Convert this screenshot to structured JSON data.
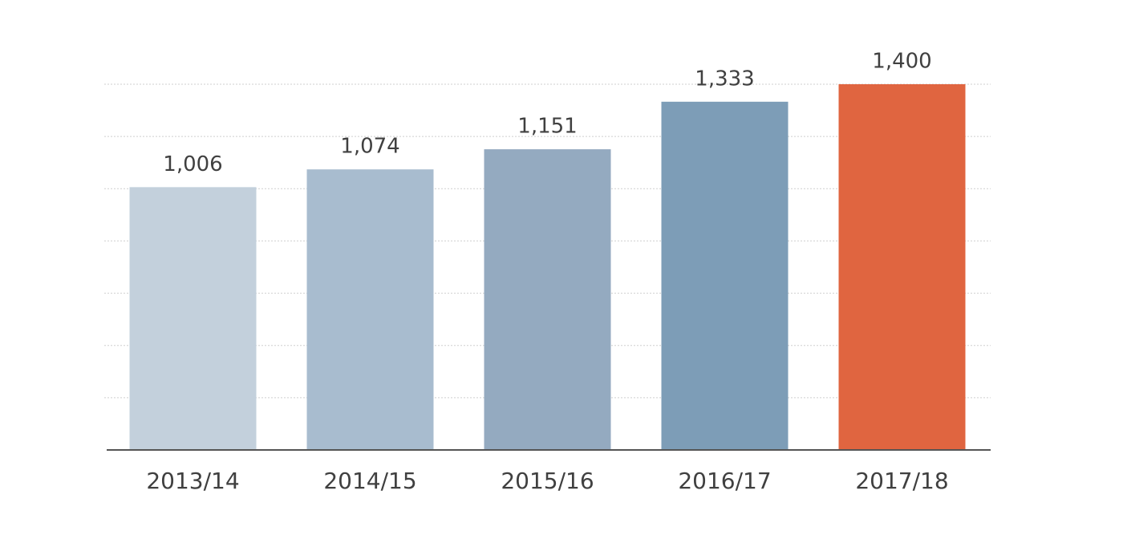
{
  "chart_data": {
    "type": "bar",
    "categories": [
      "2013/14",
      "2014/15",
      "2015/16",
      "2016/17",
      "2017/18"
    ],
    "values": [
      1006,
      1074,
      1151,
      1333,
      1400
    ],
    "value_labels": [
      "1,006",
      "1,074",
      "1,151",
      "1,333",
      "1,400"
    ],
    "colors": [
      "#c3d0dc",
      "#a8bccf",
      "#94aac0",
      "#7d9db7",
      "#e06540"
    ],
    "ylim": [
      0,
      1400
    ],
    "yticks": [
      0,
      200,
      400,
      600,
      800,
      1000,
      1200,
      1400
    ],
    "grid": true
  }
}
